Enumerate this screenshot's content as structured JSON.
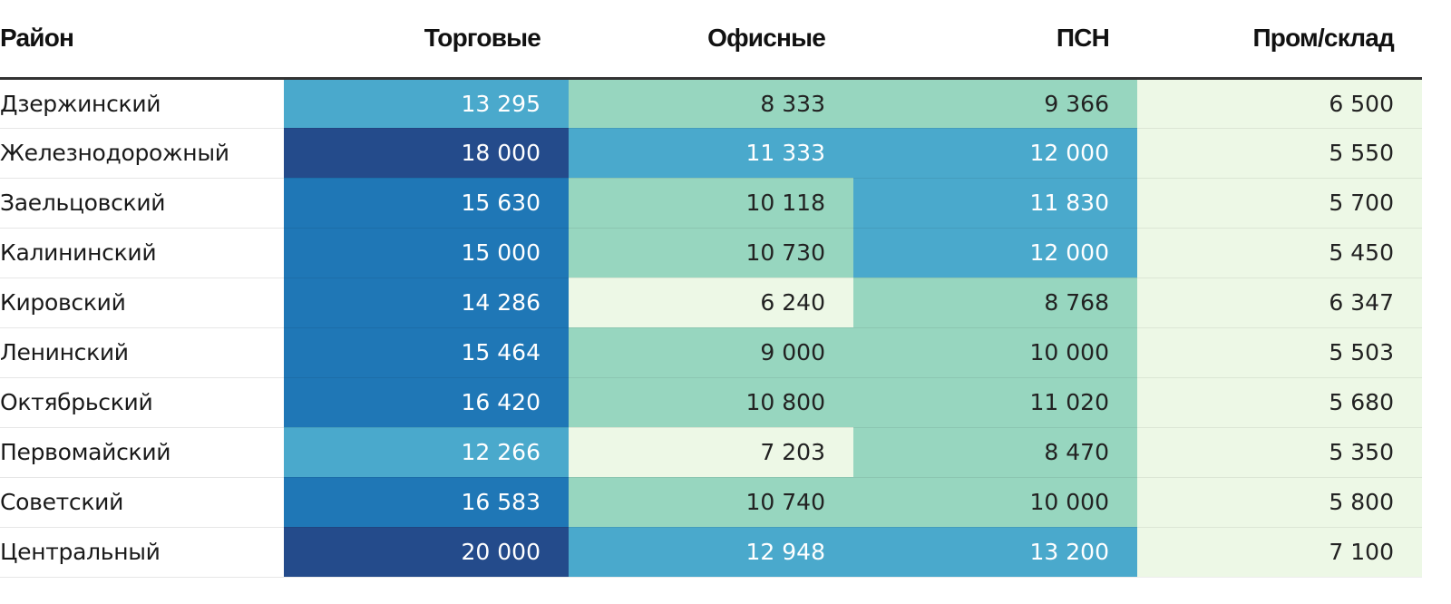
{
  "colors": {
    "scale": [
      "#edf8e6",
      "#97d6bf",
      "#4aa9cc",
      "#1f77b6",
      "#244b8b"
    ],
    "header_rule": "#333333",
    "text_dark": "#222222",
    "text_light": "#ffffff"
  },
  "chart_data": {
    "type": "table",
    "title": "",
    "columns": [
      "Район",
      "Торговые",
      "Офисные",
      "ПСН",
      "Пром/склад"
    ],
    "rows": [
      {
        "district": "Дзержинский",
        "values": [
          "13 295",
          "8 333",
          "9 366",
          "6 500"
        ],
        "levels": [
          2,
          1,
          1,
          0
        ]
      },
      {
        "district": "Железнодорожный",
        "values": [
          "18 000",
          "11 333",
          "12 000",
          "5 550"
        ],
        "levels": [
          4,
          2,
          2,
          0
        ]
      },
      {
        "district": "Заельцовский",
        "values": [
          "15 630",
          "10 118",
          "11 830",
          "5 700"
        ],
        "levels": [
          3,
          1,
          2,
          0
        ]
      },
      {
        "district": "Калининский",
        "values": [
          "15 000",
          "10 730",
          "12 000",
          "5 450"
        ],
        "levels": [
          3,
          1,
          2,
          0
        ]
      },
      {
        "district": "Кировский",
        "values": [
          "14 286",
          "6 240",
          "8 768",
          "6 347"
        ],
        "levels": [
          3,
          0,
          1,
          0
        ]
      },
      {
        "district": "Ленинский",
        "values": [
          "15 464",
          "9 000",
          "10 000",
          "5 503"
        ],
        "levels": [
          3,
          1,
          1,
          0
        ]
      },
      {
        "district": "Октябрьский",
        "values": [
          "16 420",
          "10 800",
          "11 020",
          "5 680"
        ],
        "levels": [
          3,
          1,
          1,
          0
        ]
      },
      {
        "district": "Первомайский",
        "values": [
          "12 266",
          "7 203",
          "8 470",
          "5 350"
        ],
        "levels": [
          2,
          0,
          1,
          0
        ]
      },
      {
        "district": "Советский",
        "values": [
          "16 583",
          "10 740",
          "10 000",
          "5 800"
        ],
        "levels": [
          3,
          1,
          1,
          0
        ]
      },
      {
        "district": "Центральный",
        "values": [
          "20 000",
          "12 948",
          "13 200",
          "7 100"
        ],
        "levels": [
          4,
          2,
          2,
          0
        ]
      }
    ]
  }
}
